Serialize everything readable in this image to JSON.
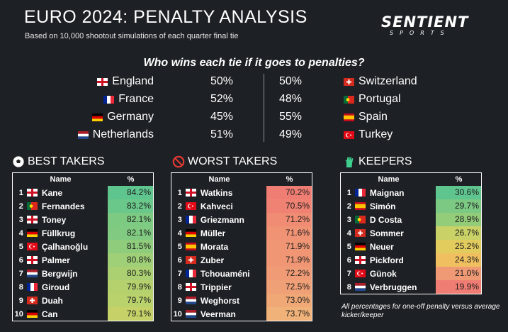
{
  "header": {
    "title": "EURO 2024: PENALTY ANALYSIS",
    "subtitle": "Based on 10,000 shootout simulations of each quarter final tie"
  },
  "logo": {
    "main": "SENTIENT",
    "sub": "SPORTS"
  },
  "question": "Who wins each tie if it goes to penalties?",
  "ties": [
    {
      "team_a": "England",
      "flag_a": "eng",
      "pct_a": "50%",
      "pct_b": "50%",
      "team_b": "Switzerland",
      "flag_b": "sui"
    },
    {
      "team_a": "France",
      "flag_a": "fra",
      "pct_a": "52%",
      "pct_b": "48%",
      "team_b": "Portugal",
      "flag_b": "por"
    },
    {
      "team_a": "Germany",
      "flag_a": "ger",
      "pct_a": "45%",
      "pct_b": "55%",
      "team_b": "Spain",
      "flag_b": "esp"
    },
    {
      "team_a": "Netherlands",
      "flag_a": "ned",
      "pct_a": "51%",
      "pct_b": "49%",
      "team_b": "Turkey",
      "flag_b": "tur"
    }
  ],
  "tables": [
    {
      "heading": "BEST TAKERS",
      "icon": "soccer-ball-icon",
      "col_name": "Name",
      "col_pct": "%",
      "rows": [
        {
          "rank": "1",
          "flag": "eng",
          "name": "Kane",
          "pct": "84.2%",
          "color": "#5fc58f"
        },
        {
          "rank": "2",
          "flag": "por",
          "name": "Fernandes",
          "pct": "83.2%",
          "color": "#6ac88a"
        },
        {
          "rank": "3",
          "flag": "eng",
          "name": "Toney",
          "pct": "82.1%",
          "color": "#7dca82"
        },
        {
          "rank": "4",
          "flag": "ger",
          "name": "Füllkrug",
          "pct": "82.1%",
          "color": "#80cb81"
        },
        {
          "rank": "5",
          "flag": "tur",
          "name": "Çalhanoğlu",
          "pct": "81.5%",
          "color": "#8fcd7c"
        },
        {
          "rank": "6",
          "flag": "eng",
          "name": "Palmer",
          "pct": "80.8%",
          "color": "#9fcf76"
        },
        {
          "rank": "7",
          "flag": "ned",
          "name": "Bergwijn",
          "pct": "80.3%",
          "color": "#aad072"
        },
        {
          "rank": "8",
          "flag": "fra",
          "name": "Giroud",
          "pct": "79.9%",
          "color": "#b4d16e"
        },
        {
          "rank": "9",
          "flag": "sui",
          "name": "Duah",
          "pct": "79.7%",
          "color": "#bad26c"
        },
        {
          "rank": "10",
          "flag": "ger",
          "name": "Can",
          "pct": "79.1%",
          "color": "#c6d268"
        }
      ]
    },
    {
      "heading": "WORST TAKERS",
      "icon": "no-entry-icon",
      "col_name": "Name",
      "col_pct": "%",
      "rows": [
        {
          "rank": "1",
          "flag": "eng",
          "name": "Watkins",
          "pct": "70.2%",
          "color": "#f07d73"
        },
        {
          "rank": "2",
          "flag": "tur",
          "name": "Kahveci",
          "pct": "70.5%",
          "color": "#f08273"
        },
        {
          "rank": "3",
          "flag": "fra",
          "name": "Griezmann",
          "pct": "71.2%",
          "color": "#f08c74"
        },
        {
          "rank": "4",
          "flag": "ger",
          "name": "Müller",
          "pct": "71.6%",
          "color": "#f09274"
        },
        {
          "rank": "5",
          "flag": "esp",
          "name": "Morata",
          "pct": "71.9%",
          "color": "#f09675"
        },
        {
          "rank": "6",
          "flag": "sui",
          "name": "Zuber",
          "pct": "71.9%",
          "color": "#f09675"
        },
        {
          "rank": "7",
          "flag": "fra",
          "name": "Tchouaméni",
          "pct": "72.2%",
          "color": "#f09b75"
        },
        {
          "rank": "8",
          "flag": "eng",
          "name": "Trippier",
          "pct": "72.5%",
          "color": "#f0a076"
        },
        {
          "rank": "9",
          "flag": "ned",
          "name": "Weghorst",
          "pct": "73.0%",
          "color": "#f0a877"
        },
        {
          "rank": "10",
          "flag": "ned",
          "name": "Veerman",
          "pct": "73.7%",
          "color": "#f0b278"
        }
      ]
    },
    {
      "heading": "KEEPERS",
      "icon": "goalkeeper-glove-icon",
      "col_name": "Name",
      "col_pct": "%",
      "rows": [
        {
          "rank": "1",
          "flag": "fra",
          "name": "Maignan",
          "pct": "30.6%",
          "color": "#5fc58f"
        },
        {
          "rank": "2",
          "flag": "esp",
          "name": "Simón",
          "pct": "29.7%",
          "color": "#7cc984"
        },
        {
          "rank": "3",
          "flag": "por",
          "name": "D Costa",
          "pct": "28.9%",
          "color": "#94cd7a"
        },
        {
          "rank": "4",
          "flag": "sui",
          "name": "Sommer",
          "pct": "26.7%",
          "color": "#c9d266"
        },
        {
          "rank": "5",
          "flag": "ger",
          "name": "Neuer",
          "pct": "25.2%",
          "color": "#e2cc5e"
        },
        {
          "rank": "6",
          "flag": "eng",
          "name": "Pickford",
          "pct": "24.3%",
          "color": "#f0c060"
        },
        {
          "rank": "7",
          "flag": "tur",
          "name": "Günok",
          "pct": "21.0%",
          "color": "#f09a75"
        },
        {
          "rank": "8",
          "flag": "ned",
          "name": "Verbruggen",
          "pct": "19.9%",
          "color": "#f07d73"
        }
      ]
    }
  ],
  "footnote": "All percentages for one-off penalty versus average kicker/keeper"
}
